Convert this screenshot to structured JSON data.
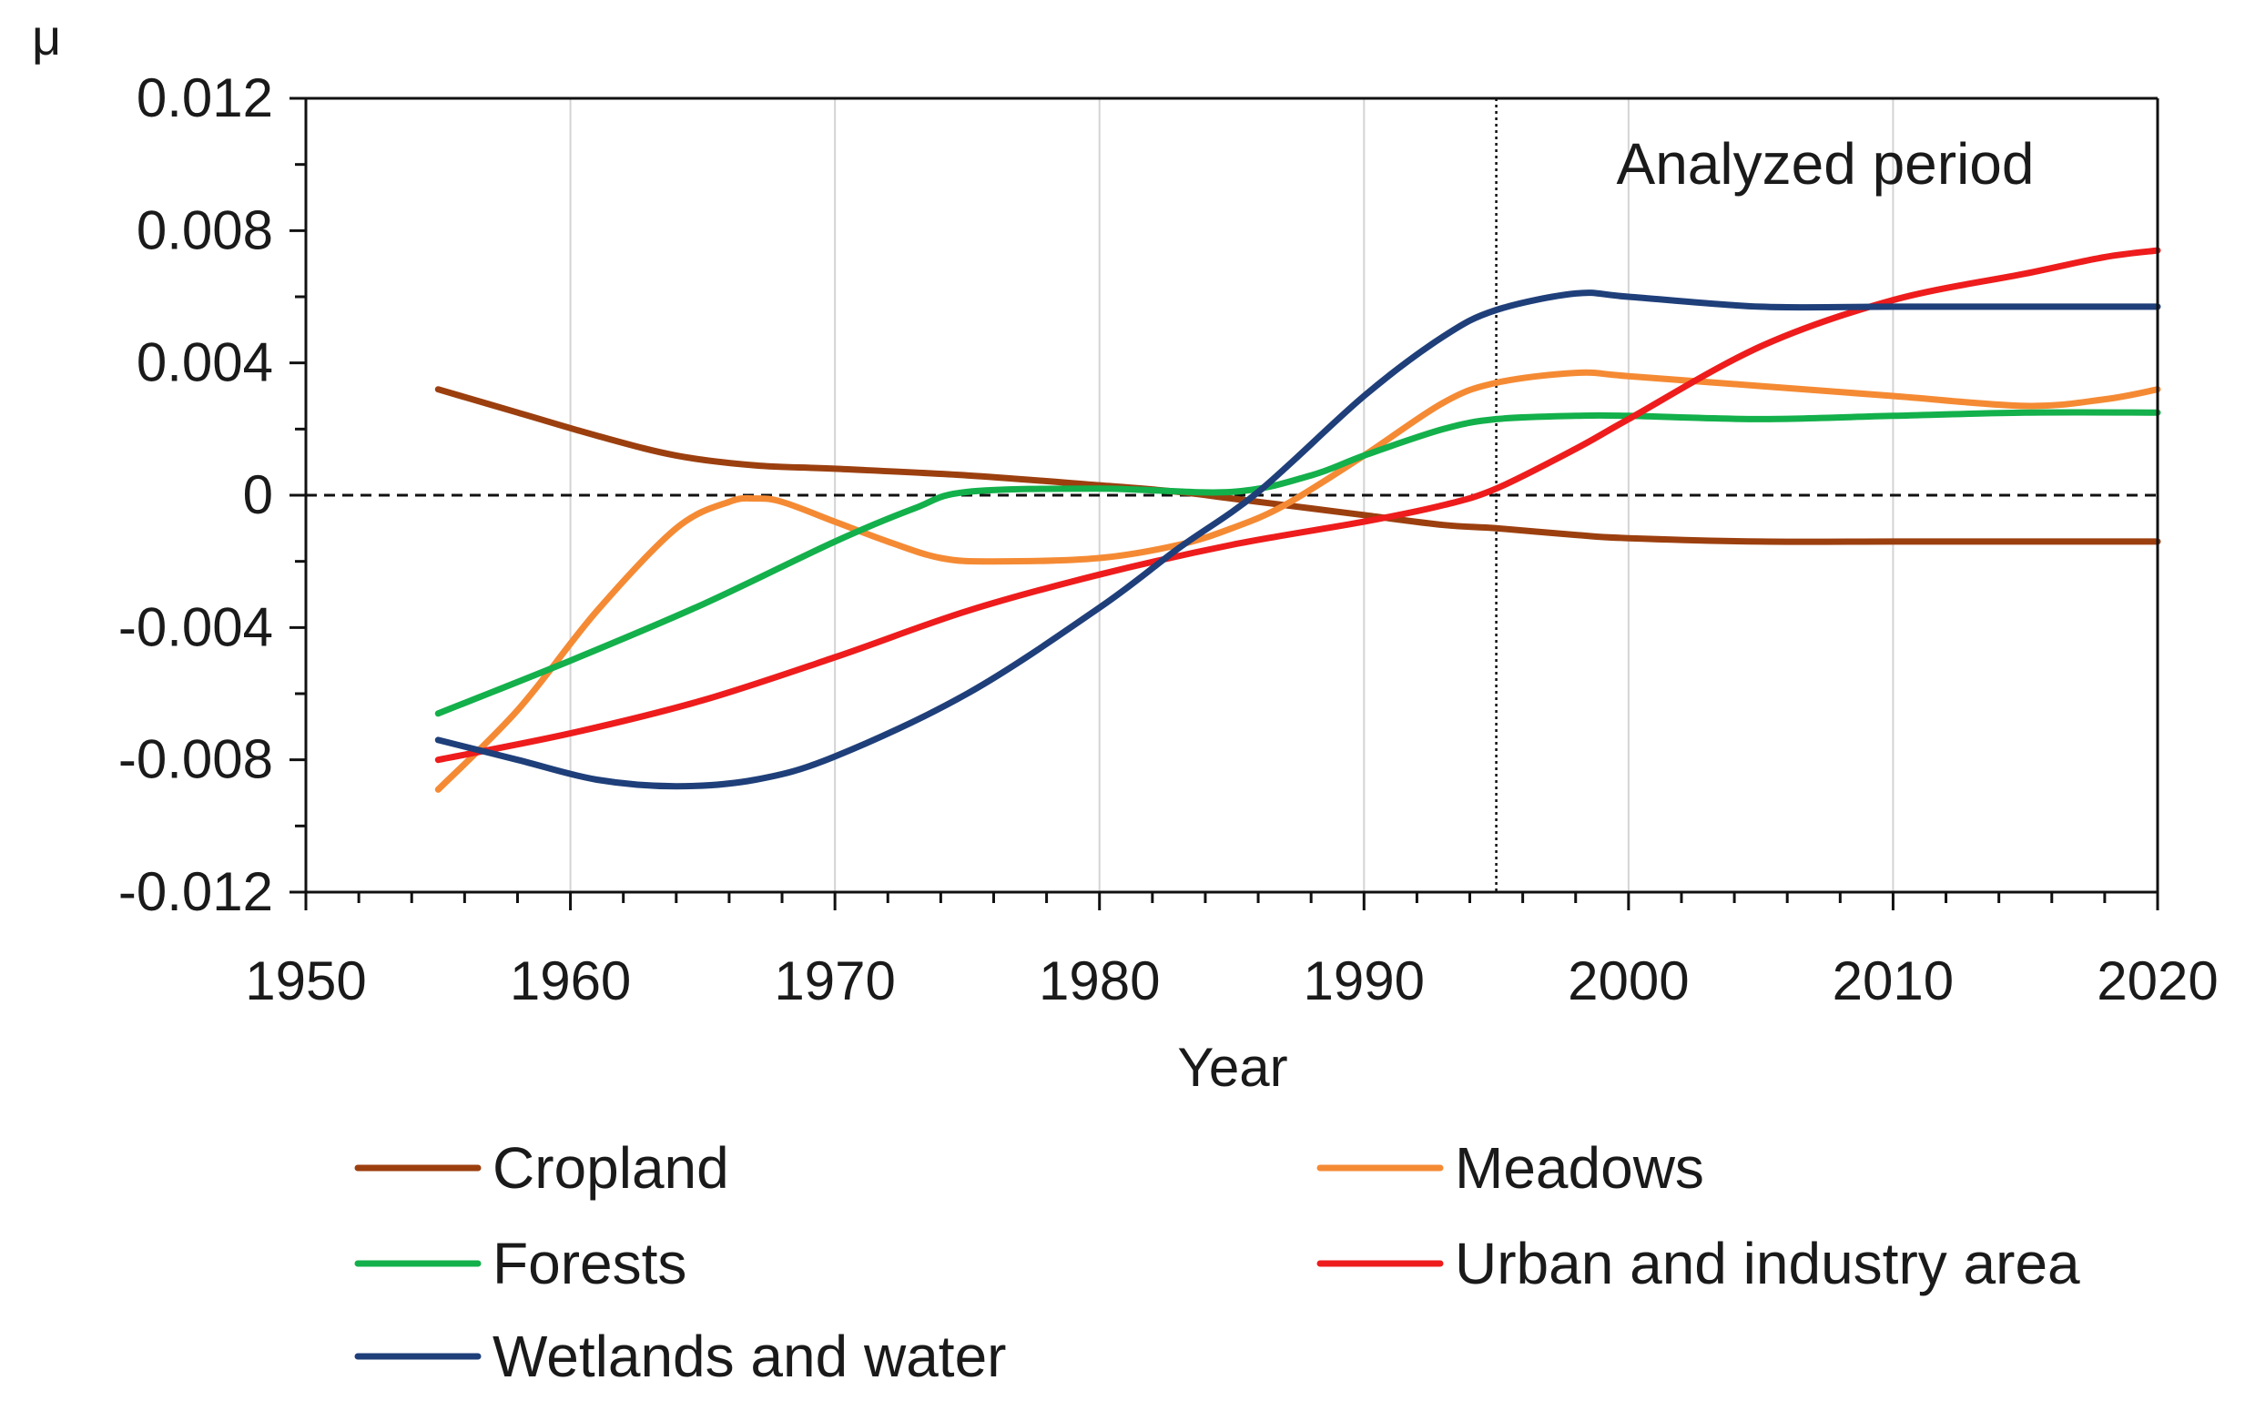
{
  "chart_data": {
    "type": "line",
    "title": "",
    "xlabel": "Year",
    "ylabel": "μ",
    "xlim": [
      1950,
      2020
    ],
    "ylim": [
      -0.012,
      0.012
    ],
    "x_ticks": [
      1950,
      1960,
      1970,
      1980,
      1990,
      2000,
      2010,
      2020
    ],
    "x_tick_labels": [
      "1950",
      "1960",
      "1970",
      "1980",
      "1990",
      "2000",
      "2010",
      "2020"
    ],
    "y_ticks": [
      0.012,
      0.008,
      0.004,
      0,
      -0.004,
      -0.008,
      -0.012
    ],
    "y_tick_labels": [
      "0.012",
      "0.008",
      "0.004",
      "0",
      "-0.004",
      "-0.008",
      "-0.012"
    ],
    "vertical_gridlines": true,
    "reference_line": {
      "y": 0,
      "style": "dashed"
    },
    "period_marker": {
      "x": 1995,
      "style": "dotted",
      "label": "Analyzed period"
    },
    "legend_position": "bottom",
    "series": [
      {
        "name": "Cropland",
        "color": "#9c3f0f",
        "x": [
          1955,
          1958,
          1961,
          1964,
          1967,
          1970,
          1975,
          1980,
          1983,
          1985,
          1988,
          1990,
          1993,
          1995,
          1998,
          2000,
          2005,
          2010,
          2015,
          2020
        ],
        "y": [
          0.0032,
          0.0025,
          0.0018,
          0.0012,
          0.0009,
          0.0008,
          0.0006,
          0.0003,
          0.0001,
          -0.0001,
          -0.0004,
          -0.0006,
          -0.0009,
          -0.001,
          -0.0012,
          -0.0013,
          -0.0014,
          -0.0014,
          -0.0014,
          -0.0014
        ]
      },
      {
        "name": "Meadows",
        "color": "#f58a34",
        "x": [
          1955,
          1958,
          1961,
          1964,
          1966,
          1967,
          1968,
          1970,
          1972,
          1974,
          1976,
          1980,
          1983,
          1985,
          1987,
          1990,
          1993,
          1995,
          1998,
          2000,
          2005,
          2010,
          2015,
          2018,
          2020
        ],
        "y": [
          -0.0089,
          -0.0065,
          -0.0035,
          -0.001,
          -0.0002,
          -0.0001,
          -0.0002,
          -0.0008,
          -0.0014,
          -0.0019,
          -0.002,
          -0.0019,
          -0.0015,
          -0.001,
          -0.0003,
          0.0012,
          0.0028,
          0.0034,
          0.0037,
          0.0036,
          0.0033,
          0.003,
          0.0027,
          0.0029,
          0.0032
        ]
      },
      {
        "name": "Forests",
        "color": "#13b04b",
        "x": [
          1955,
          1960,
          1965,
          1970,
          1973,
          1975,
          1980,
          1985,
          1988,
          1990,
          1993,
          1995,
          1998,
          2000,
          2005,
          2010,
          2015,
          2020
        ],
        "y": [
          -0.0066,
          -0.005,
          -0.0033,
          -0.0014,
          -0.0004,
          0.0001,
          0.0002,
          0.0001,
          0.0006,
          0.0012,
          0.002,
          0.0023,
          0.0024,
          0.0024,
          0.0023,
          0.0024,
          0.0025,
          0.0025
        ]
      },
      {
        "name": "Urban and industry area",
        "color": "#ee1c1c",
        "x": [
          1955,
          1960,
          1965,
          1970,
          1975,
          1980,
          1985,
          1990,
          1993,
          1995,
          1998,
          2000,
          2005,
          2010,
          2015,
          2018,
          2020
        ],
        "y": [
          -0.008,
          -0.0072,
          -0.0062,
          -0.0049,
          -0.0035,
          -0.0024,
          -0.0015,
          -0.0008,
          -0.0003,
          0.0002,
          0.0014,
          0.0023,
          0.0045,
          0.0059,
          0.0067,
          0.0072,
          0.0074
        ]
      },
      {
        "name": "Wetlands and water",
        "color": "#1f3f7a",
        "x": [
          1955,
          1958,
          1961,
          1964,
          1967,
          1970,
          1975,
          1980,
          1983,
          1986,
          1990,
          1993,
          1995,
          1998,
          2000,
          2005,
          2010,
          2015,
          2020
        ],
        "y": [
          -0.0074,
          -0.008,
          -0.0086,
          -0.0088,
          -0.0086,
          -0.0079,
          -0.006,
          -0.0034,
          -0.0016,
          0.0001,
          0.003,
          0.0048,
          0.0056,
          0.0061,
          0.006,
          0.0057,
          0.0057,
          0.0057,
          0.0057
        ]
      }
    ]
  }
}
